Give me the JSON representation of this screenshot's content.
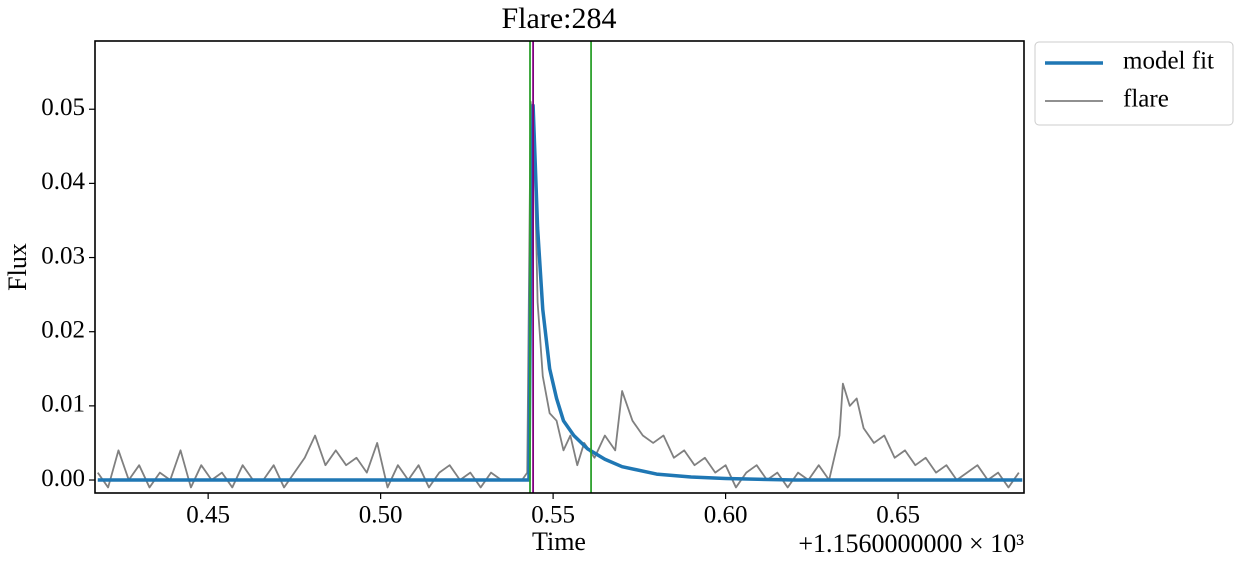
{
  "chart_data": {
    "type": "line",
    "title": "Flare:284",
    "xlabel": "Time",
    "ylabel": "Flux",
    "x_offset_label": "+1.1560000000 × 10³",
    "xlim": [
      0.4172,
      0.6865
    ],
    "ylim": [
      -0.00175,
      0.0592
    ],
    "xticks": [
      0.45,
      {
        "value": 0.5,
        "label": "0.50"
      },
      0.55,
      {
        "value": 0.6,
        "label": "0.60"
      },
      0.65
    ],
    "yticks": [
      {
        "value": 0,
        "label": "0.00"
      },
      0.01,
      0.02,
      0.03,
      0.04,
      0.05
    ],
    "grid": false,
    "legend": "outside-upper-right",
    "vlines": [
      {
        "x": 0.5433,
        "color": "#2ca02c"
      },
      {
        "x": 0.561,
        "color": "#2ca02c"
      },
      {
        "x": 0.5442,
        "color": "#800080"
      }
    ],
    "series": [
      {
        "name": "model fit",
        "color": "#1f77b4",
        "width": 3.5,
        "x": [
          0.418,
          0.543,
          0.5435,
          0.5442,
          0.5455,
          0.547,
          0.549,
          0.551,
          0.553,
          0.556,
          0.56,
          0.565,
          0.57,
          0.58,
          0.59,
          0.6,
          0.62,
          0.686
        ],
        "values": [
          0,
          0,
          0.03,
          0.0505,
          0.034,
          0.023,
          0.015,
          0.011,
          0.008,
          0.006,
          0.0042,
          0.0028,
          0.0018,
          0.0008,
          0.0004,
          0.0002,
          0,
          0
        ]
      },
      {
        "name": "flare",
        "color": "#808080",
        "width": 1.8,
        "x": [
          0.418,
          0.421,
          0.424,
          0.427,
          0.43,
          0.433,
          0.436,
          0.439,
          0.442,
          0.445,
          0.448,
          0.451,
          0.454,
          0.457,
          0.46,
          0.463,
          0.466,
          0.469,
          0.472,
          0.475,
          0.478,
          0.481,
          0.484,
          0.487,
          0.49,
          0.493,
          0.496,
          0.499,
          0.502,
          0.505,
          0.508,
          0.511,
          0.514,
          0.517,
          0.52,
          0.523,
          0.526,
          0.529,
          0.532,
          0.535,
          0.538,
          0.541,
          0.5425,
          0.5435,
          0.5445,
          0.5455,
          0.547,
          0.549,
          0.551,
          0.553,
          0.555,
          0.557,
          0.559,
          0.562,
          0.565,
          0.568,
          0.57,
          0.573,
          0.576,
          0.579,
          0.582,
          0.585,
          0.588,
          0.591,
          0.594,
          0.597,
          0.6,
          0.603,
          0.606,
          0.609,
          0.612,
          0.615,
          0.618,
          0.621,
          0.624,
          0.627,
          0.63,
          0.633,
          0.634,
          0.636,
          0.638,
          0.64,
          0.643,
          0.646,
          0.649,
          0.652,
          0.655,
          0.658,
          0.661,
          0.664,
          0.667,
          0.67,
          0.673,
          0.676,
          0.679,
          0.682,
          0.685
        ],
        "values": [
          0.001,
          -0.001,
          0.004,
          0,
          0.002,
          -0.001,
          0.001,
          0,
          0.004,
          -0.001,
          0.002,
          0,
          0.001,
          -0.001,
          0.002,
          0,
          0,
          0.002,
          -0.001,
          0.001,
          0.003,
          0.006,
          0.002,
          0.004,
          0.002,
          0.003,
          0.001,
          0.005,
          -0.001,
          0.002,
          0,
          0.002,
          -0.001,
          0.001,
          0.002,
          0,
          0.001,
          -0.001,
          0.001,
          0,
          0,
          0,
          0.001,
          0.051,
          0.046,
          0.024,
          0.014,
          0.009,
          0.008,
          0.004,
          0.006,
          0.002,
          0.005,
          0.003,
          0.006,
          0.004,
          0.012,
          0.008,
          0.006,
          0.005,
          0.006,
          0.003,
          0.004,
          0.002,
          0.003,
          0.001,
          0.002,
          -0.001,
          0.001,
          0.002,
          0,
          0.001,
          -0.001,
          0.001,
          0,
          0.002,
          0,
          0.006,
          0.013,
          0.01,
          0.011,
          0.007,
          0.005,
          0.006,
          0.003,
          0.004,
          0.002,
          0.003,
          0.001,
          0.002,
          0,
          0.001,
          0.002,
          0,
          0.001,
          -0.001,
          0.001
        ]
      }
    ]
  }
}
